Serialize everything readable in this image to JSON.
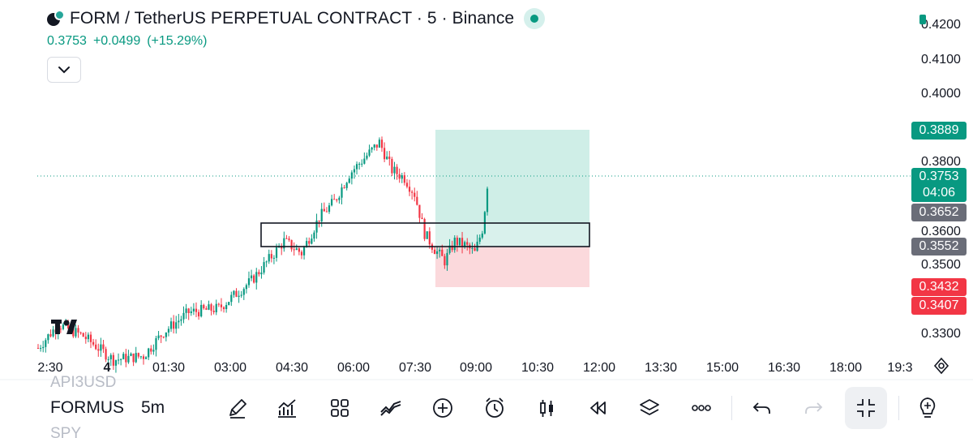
{
  "header": {
    "title": "FORM / TetherUS PERPETUAL CONTRACT · 5 · Binance",
    "last_price": "0.3753",
    "change": "+0.0499",
    "change_pct": "(+15.29%)",
    "pair_logo_icon": "form-usdt-pair-logo",
    "status_icon": "market-open-dot",
    "collapse_icon": "chevron-down-icon"
  },
  "price_axis": {
    "ticks": [
      "0.4200",
      "0.4100",
      "0.4000",
      "0.3800",
      "0.3600",
      "0.3500",
      "0.3300"
    ],
    "tags": {
      "take_profit": "0.3889",
      "current_price": "0.3753",
      "countdown": "04:06",
      "range_high": "0.3652",
      "range_low": "0.3552",
      "stop_1": "0.3432",
      "stop_2": "0.3407"
    }
  },
  "time_axis": {
    "ticks": [
      "2:30",
      "4",
      "01:30",
      "03:00",
      "04:30",
      "06:00",
      "07:30",
      "09:00",
      "10:30",
      "12:00",
      "13:30",
      "15:00",
      "16:30",
      "18:00",
      "19:3"
    ]
  },
  "chart_data": {
    "type": "candlestick",
    "symbol": "FORMUSDT.P",
    "interval": "5",
    "exchange": "Binance",
    "y_range": [
      0.327,
      0.423
    ],
    "last_price": 0.3753,
    "long_position": {
      "entry": 0.3652,
      "take_profit": 0.3889,
      "stop": 0.3432
    },
    "rectangle": {
      "top": 0.3652,
      "bottom": 0.3552
    },
    "colors": {
      "up": "#089981",
      "down": "#f23645",
      "tp_zone": "#cfeee7",
      "sl_zone": "#fbd9dc"
    },
    "candle_count": 180
  },
  "watchlist": {
    "prev": "API3USD",
    "current": "FORMUS",
    "next": "SPY"
  },
  "toolbar": {
    "interval": "5m",
    "icons": [
      "draw-icon",
      "indicators-icon",
      "layouts-icon",
      "compare-icon",
      "add-icon",
      "alert-icon",
      "candle-type-icon",
      "replay-icon",
      "layers-icon",
      "more-icon",
      "undo-icon",
      "redo-icon",
      "fullscreen-exit-icon",
      "ideas-icon"
    ]
  },
  "branding": {
    "logo": "tradingview-logo"
  }
}
